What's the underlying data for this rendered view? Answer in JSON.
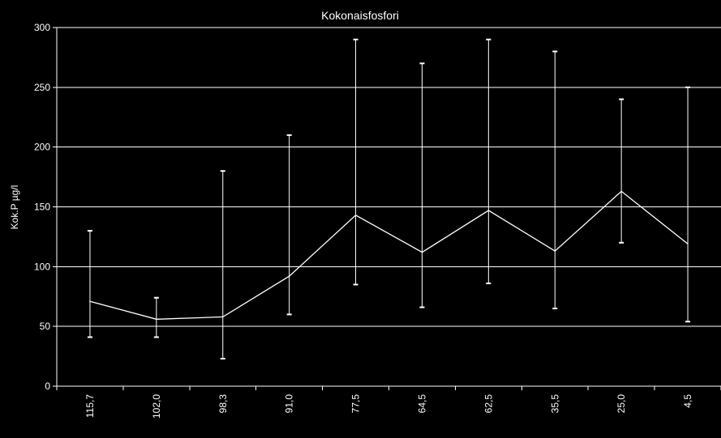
{
  "chart_data": {
    "type": "line",
    "title": "Kokonaisfosfori",
    "xlabel": "",
    "ylabel": "Kok.P µg/l",
    "categories": [
      "115,7",
      "102,0",
      "98,3",
      "91,0",
      "77,5",
      "64,5",
      "62,5",
      "35,5",
      "25,0",
      "4,5"
    ],
    "series": [
      {
        "values": [
          71,
          56,
          58,
          92,
          143,
          112,
          147,
          113,
          163,
          119
        ],
        "error_low": [
          41,
          41,
          23,
          60,
          85,
          66,
          86,
          65,
          120,
          54
        ],
        "error_high": [
          130,
          74,
          180,
          210,
          290,
          270,
          290,
          280,
          240,
          250
        ]
      }
    ],
    "ylim": [
      0,
      300
    ],
    "yticks": [
      0,
      50,
      100,
      150,
      200,
      250,
      300
    ],
    "grid": true,
    "legend": "none",
    "colors": {
      "background": "#000000",
      "line": "#ffffff",
      "grid": "#ffffff",
      "text": "#ffffff"
    }
  }
}
